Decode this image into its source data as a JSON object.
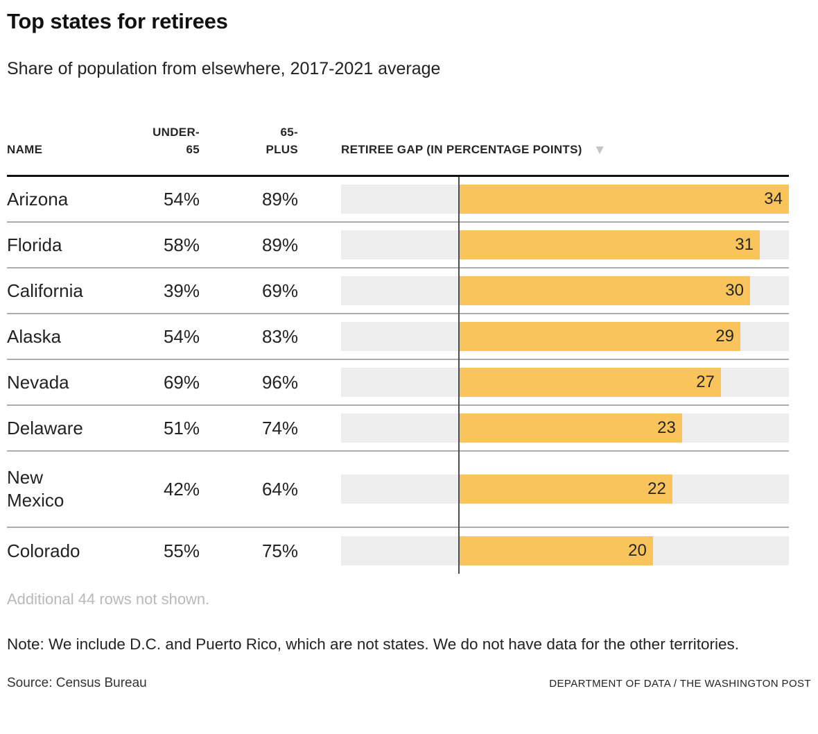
{
  "title": "Top states for retirees",
  "subtitle": "Share of population from elsewhere, 2017-2021 average",
  "table": {
    "columns": {
      "name": "NAME",
      "under65": "UNDER-65",
      "plus65": "65-PLUS",
      "gap": "RETIREE GAP (IN PERCENTAGE POINTS)"
    },
    "sort_icon": "▼",
    "rows": [
      {
        "name": "Arizona",
        "under65": "54%",
        "plus65": "89%",
        "gap": 34
      },
      {
        "name": "Florida",
        "under65": "58%",
        "plus65": "89%",
        "gap": 31
      },
      {
        "name": "California",
        "under65": "39%",
        "plus65": "69%",
        "gap": 30
      },
      {
        "name": "Alaska",
        "under65": "54%",
        "plus65": "83%",
        "gap": 29
      },
      {
        "name": "Nevada",
        "under65": "69%",
        "plus65": "96%",
        "gap": 27
      },
      {
        "name": "Delaware",
        "under65": "51%",
        "plus65": "74%",
        "gap": 23
      },
      {
        "name": "New Mexico",
        "under65": "42%",
        "plus65": "64%",
        "gap": 22
      },
      {
        "name": "Colorado",
        "under65": "55%",
        "plus65": "75%",
        "gap": 20
      }
    ]
  },
  "chart_data": {
    "type": "bar",
    "orientation": "horizontal",
    "title": "Top states for retirees",
    "subtitle": "Share of population from elsewhere, 2017-2021 average",
    "categories": [
      "Arizona",
      "Florida",
      "California",
      "Alaska",
      "Nevada",
      "Delaware",
      "New Mexico",
      "Colorado"
    ],
    "values": [
      34,
      31,
      30,
      29,
      27,
      23,
      22,
      20
    ],
    "series": [
      {
        "name": "Under-65 share",
        "values": [
          "54%",
          "58%",
          "39%",
          "54%",
          "69%",
          "51%",
          "42%",
          "55%"
        ]
      },
      {
        "name": "65-plus share",
        "values": [
          "89%",
          "89%",
          "69%",
          "83%",
          "96%",
          "74%",
          "64%",
          "75%"
        ]
      },
      {
        "name": "Retiree gap (percentage points)",
        "values": [
          34,
          31,
          30,
          29,
          27,
          23,
          22,
          20
        ]
      }
    ],
    "xlabel": "RETIREE GAP (IN PERCENTAGE POINTS)",
    "ylabel": "NAME",
    "xlim": [
      -12.1,
      34
    ],
    "zero_line": 0,
    "grid": false,
    "legend_position": "none",
    "value_labels": true,
    "sort": "descending"
  },
  "footer": {
    "additional": "Additional 44 rows not shown.",
    "note": "Note: We include D.C. and Puerto Rico, which are not states. We do not have data for the other territories.",
    "source": "Source: Census Bureau",
    "credit": "DEPARTMENT OF DATA / THE WASHINGTON POST"
  },
  "colors": {
    "bar": "#FAC45C",
    "track": "#EDEDED",
    "zero_line": "#4D4D4D",
    "separator": "#ADADAD",
    "header_rule": "#111111",
    "sort_icon": "#C5C5C5"
  }
}
